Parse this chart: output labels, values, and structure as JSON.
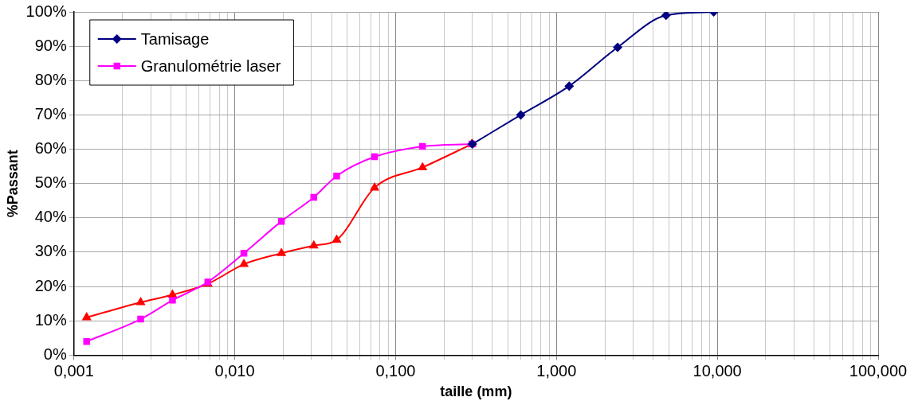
{
  "chart_data": {
    "type": "line",
    "xlabel": "taille (mm)",
    "ylabel": "%Passant",
    "log": "x",
    "grid": true,
    "legend": "top left",
    "line_style": "solid",
    "xlim": [
      0.001,
      100
    ],
    "ylim": [
      0,
      100
    ],
    "xticks": [
      {
        "value": 0.001,
        "label": "0,001"
      },
      {
        "value": 0.002,
        "label": null
      },
      {
        "value": 0.003,
        "label": null
      },
      {
        "value": 0.004,
        "label": null
      },
      {
        "value": 0.005,
        "label": null
      },
      {
        "value": 0.006,
        "label": null
      },
      {
        "value": 0.007,
        "label": null
      },
      {
        "value": 0.008,
        "label": null
      },
      {
        "value": 0.009,
        "label": null
      },
      {
        "value": 0.01,
        "label": "0,010"
      },
      {
        "value": 0.02,
        "label": null
      },
      {
        "value": 0.03,
        "label": null
      },
      {
        "value": 0.04,
        "label": null
      },
      {
        "value": 0.05,
        "label": null
      },
      {
        "value": 0.06,
        "label": null
      },
      {
        "value": 0.07,
        "label": null
      },
      {
        "value": 0.08,
        "label": null
      },
      {
        "value": 0.09,
        "label": null
      },
      {
        "value": 0.1,
        "label": "0,100"
      },
      {
        "value": 0.2,
        "label": null
      },
      {
        "value": 0.3,
        "label": null
      },
      {
        "value": 0.4,
        "label": null
      },
      {
        "value": 0.5,
        "label": null
      },
      {
        "value": 0.6,
        "label": null
      },
      {
        "value": 0.7,
        "label": null
      },
      {
        "value": 0.8,
        "label": null
      },
      {
        "value": 0.9,
        "label": null
      },
      {
        "value": 1,
        "label": "1,000"
      },
      {
        "value": 2,
        "label": null
      },
      {
        "value": 3,
        "label": null
      },
      {
        "value": 4,
        "label": null
      },
      {
        "value": 5,
        "label": null
      },
      {
        "value": 6,
        "label": null
      },
      {
        "value": 7,
        "label": null
      },
      {
        "value": 8,
        "label": null
      },
      {
        "value": 9,
        "label": null
      },
      {
        "value": 10,
        "label": "10,000"
      },
      {
        "value": 20,
        "label": null
      },
      {
        "value": 30,
        "label": null
      },
      {
        "value": 40,
        "label": null
      },
      {
        "value": 50,
        "label": null
      },
      {
        "value": 60,
        "label": null
      },
      {
        "value": 70,
        "label": null
      },
      {
        "value": 80,
        "label": null
      },
      {
        "value": 90,
        "label": null
      },
      {
        "value": 100,
        "label": "100,000"
      }
    ],
    "yticks": [
      {
        "value": 0,
        "label": "0%"
      },
      {
        "value": 10,
        "label": "10%"
      },
      {
        "value": 20,
        "label": "20%"
      },
      {
        "value": 30,
        "label": "30%"
      },
      {
        "value": 40,
        "label": "40%"
      },
      {
        "value": 50,
        "label": "50%"
      },
      {
        "value": 60,
        "label": "60%"
      },
      {
        "value": 70,
        "label": "70%"
      },
      {
        "value": 80,
        "label": "80%"
      },
      {
        "value": 90,
        "label": "90%"
      },
      {
        "value": 100,
        "label": "100%"
      }
    ],
    "series": [
      {
        "name": "Tamisage",
        "color": "#000080",
        "marker": "diamond",
        "x": [
          0.3,
          0.6,
          1.2,
          2.4,
          4.8,
          9.5
        ],
        "values": [
          61.5,
          70,
          78.4,
          89.7,
          99,
          100
        ]
      },
      {
        "name": "Granulométrie laser",
        "color": "#ff00ff",
        "marker": "square",
        "x": [
          0.0012,
          0.0026,
          0.0041,
          0.0068,
          0.0114,
          0.0195,
          0.031,
          0.043,
          0.074,
          0.147,
          0.298
        ],
        "values": [
          4,
          10.5,
          16,
          21.3,
          29.7,
          39,
          46,
          52.2,
          57.8,
          60.8,
          61.5
        ]
      },
      {
        "color": "#ff0000",
        "marker": "triangle",
        "x": [
          0.0012,
          0.0026,
          0.0041,
          0.0068,
          0.0114,
          0.0195,
          0.031,
          0.043,
          0.074,
          0.147,
          0.298
        ],
        "values": [
          11,
          15.4,
          17.6,
          20.8,
          26.5,
          29.7,
          31.9,
          33.6,
          48.8,
          54.7,
          61.5
        ]
      }
    ]
  }
}
